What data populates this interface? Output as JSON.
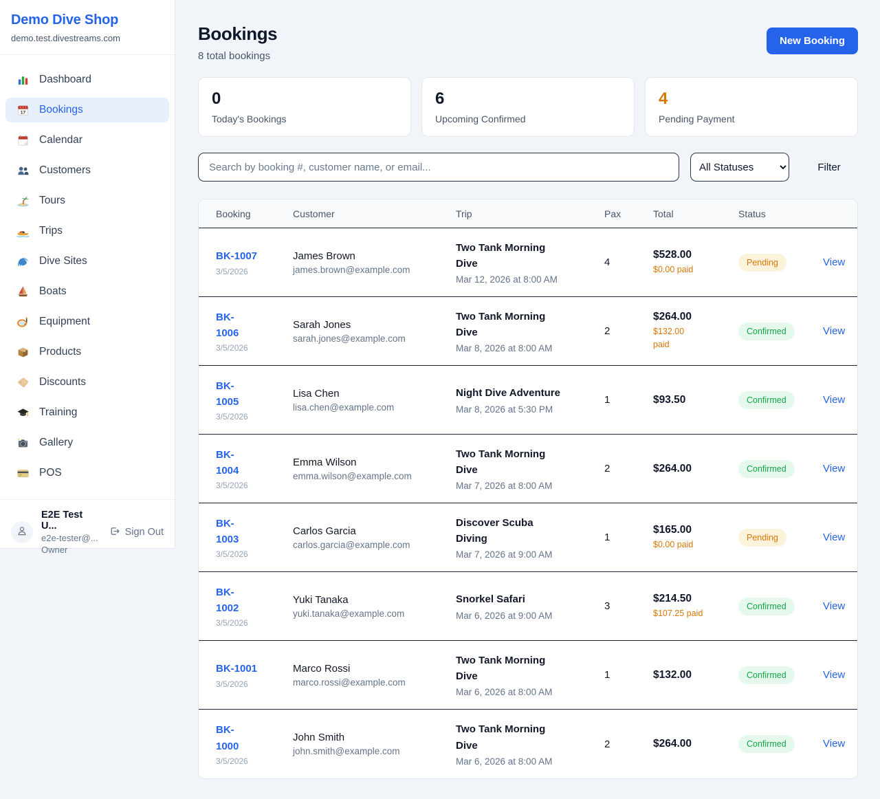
{
  "sidebar": {
    "brand": {
      "name": "Demo Dive Shop",
      "domain": "demo.test.divestreams.com"
    },
    "items": [
      {
        "label": "Dashboard",
        "icon": "bar-chart"
      },
      {
        "label": "Bookings",
        "icon": "calendar-date"
      },
      {
        "label": "Calendar",
        "icon": "calendar-pad"
      },
      {
        "label": "Customers",
        "icon": "users"
      },
      {
        "label": "Tours",
        "icon": "island"
      },
      {
        "label": "Trips",
        "icon": "speedboat"
      },
      {
        "label": "Dive Sites",
        "icon": "wave"
      },
      {
        "label": "Boats",
        "icon": "sailboat"
      },
      {
        "label": "Equipment",
        "icon": "dive-mask"
      },
      {
        "label": "Products",
        "icon": "package"
      },
      {
        "label": "Discounts",
        "icon": "tag"
      },
      {
        "label": "Training",
        "icon": "grad-cap"
      },
      {
        "label": "Gallery",
        "icon": "camera"
      },
      {
        "label": "POS",
        "icon": "credit-card"
      }
    ],
    "active_index": 1,
    "user": {
      "name": "E2E Test U...",
      "email": "e2e-tester@...",
      "role": "Owner",
      "sign_out_label": "Sign Out"
    }
  },
  "header": {
    "title": "Bookings",
    "subtitle": "8 total bookings",
    "new_booking_label": "New Booking"
  },
  "stats": [
    {
      "value": "0",
      "label": "Today's Bookings",
      "value_color": "#0f172a"
    },
    {
      "value": "6",
      "label": "Upcoming Confirmed",
      "value_color": "#0f172a"
    },
    {
      "value": "4",
      "label": "Pending Payment",
      "value_color": "#d97706"
    }
  ],
  "filters": {
    "search_placeholder": "Search by booking #, customer name, or email...",
    "status_selected": "All Statuses",
    "filter_label": "Filter"
  },
  "table": {
    "columns": [
      "Booking",
      "Customer",
      "Trip",
      "Pax",
      "Total",
      "Status"
    ],
    "view_label": "View",
    "rows": [
      {
        "number_lines": [
          "BK-1007"
        ],
        "date": "3/5/2026",
        "customer": "James Brown",
        "email": "james.brown@example.com",
        "trip_lines": [
          "Two Tank Morning",
          "Dive"
        ],
        "datetime": "Mar 12, 2026 at 8:00 AM",
        "pax": "4",
        "total": "$528.00",
        "paid_lines": [
          "$0.00 paid"
        ],
        "status": "Pending"
      },
      {
        "number_lines": [
          "BK-",
          "1006"
        ],
        "date": "3/5/2026",
        "customer": "Sarah Jones",
        "email": "sarah.jones@example.com",
        "trip_lines": [
          "Two Tank Morning",
          "Dive"
        ],
        "datetime": "Mar 8, 2026 at 8:00 AM",
        "pax": "2",
        "total": "$264.00",
        "paid_lines": [
          "$132.00",
          "paid"
        ],
        "status": "Confirmed"
      },
      {
        "number_lines": [
          "BK-",
          "1005"
        ],
        "date": "3/5/2026",
        "customer": "Lisa Chen",
        "email": "lisa.chen@example.com",
        "trip_lines": [
          "Night Dive Adventure"
        ],
        "datetime": "Mar 8, 2026 at 5:30 PM",
        "pax": "1",
        "total": "$93.50",
        "paid_lines": [],
        "status": "Confirmed"
      },
      {
        "number_lines": [
          "BK-",
          "1004"
        ],
        "date": "3/5/2026",
        "customer": "Emma Wilson",
        "email": "emma.wilson@example.com",
        "trip_lines": [
          "Two Tank Morning",
          "Dive"
        ],
        "datetime": "Mar 7, 2026 at 8:00 AM",
        "pax": "2",
        "total": "$264.00",
        "paid_lines": [],
        "status": "Confirmed"
      },
      {
        "number_lines": [
          "BK-",
          "1003"
        ],
        "date": "3/5/2026",
        "customer": "Carlos Garcia",
        "email": "carlos.garcia@example.com",
        "trip_lines": [
          "Discover Scuba",
          "Diving"
        ],
        "datetime": "Mar 7, 2026 at 9:00 AM",
        "pax": "1",
        "total": "$165.00",
        "paid_lines": [
          "$0.00 paid"
        ],
        "status": "Pending"
      },
      {
        "number_lines": [
          "BK-",
          "1002"
        ],
        "date": "3/5/2026",
        "customer": "Yuki Tanaka",
        "email": "yuki.tanaka@example.com",
        "trip_lines": [
          "Snorkel Safari"
        ],
        "datetime": "Mar 6, 2026 at 9:00 AM",
        "pax": "3",
        "total": "$214.50",
        "paid_lines": [
          "$107.25 paid"
        ],
        "status": "Confirmed"
      },
      {
        "number_lines": [
          "BK-1001"
        ],
        "date": "3/5/2026",
        "customer": "Marco Rossi",
        "email": "marco.rossi@example.com",
        "trip_lines": [
          "Two Tank Morning",
          "Dive"
        ],
        "datetime": "Mar 6, 2026 at 8:00 AM",
        "pax": "1",
        "total": "$132.00",
        "paid_lines": [],
        "status": "Confirmed"
      },
      {
        "number_lines": [
          "BK-",
          "1000"
        ],
        "date": "3/5/2026",
        "customer": "John Smith",
        "email": "john.smith@example.com",
        "trip_lines": [
          "Two Tank Morning",
          "Dive"
        ],
        "datetime": "Mar 6, 2026 at 8:00 AM",
        "pax": "2",
        "total": "$264.00",
        "paid_lines": [],
        "status": "Confirmed"
      }
    ]
  },
  "colors": {
    "accent": "#2563eb",
    "pending_bg": "#fcf3da",
    "pending_text": "#d97706",
    "confirmed_bg": "#e4f8ec",
    "confirmed_text": "#16a34a",
    "paid_orange": "#d97706",
    "row_divider": "#1b2432"
  }
}
